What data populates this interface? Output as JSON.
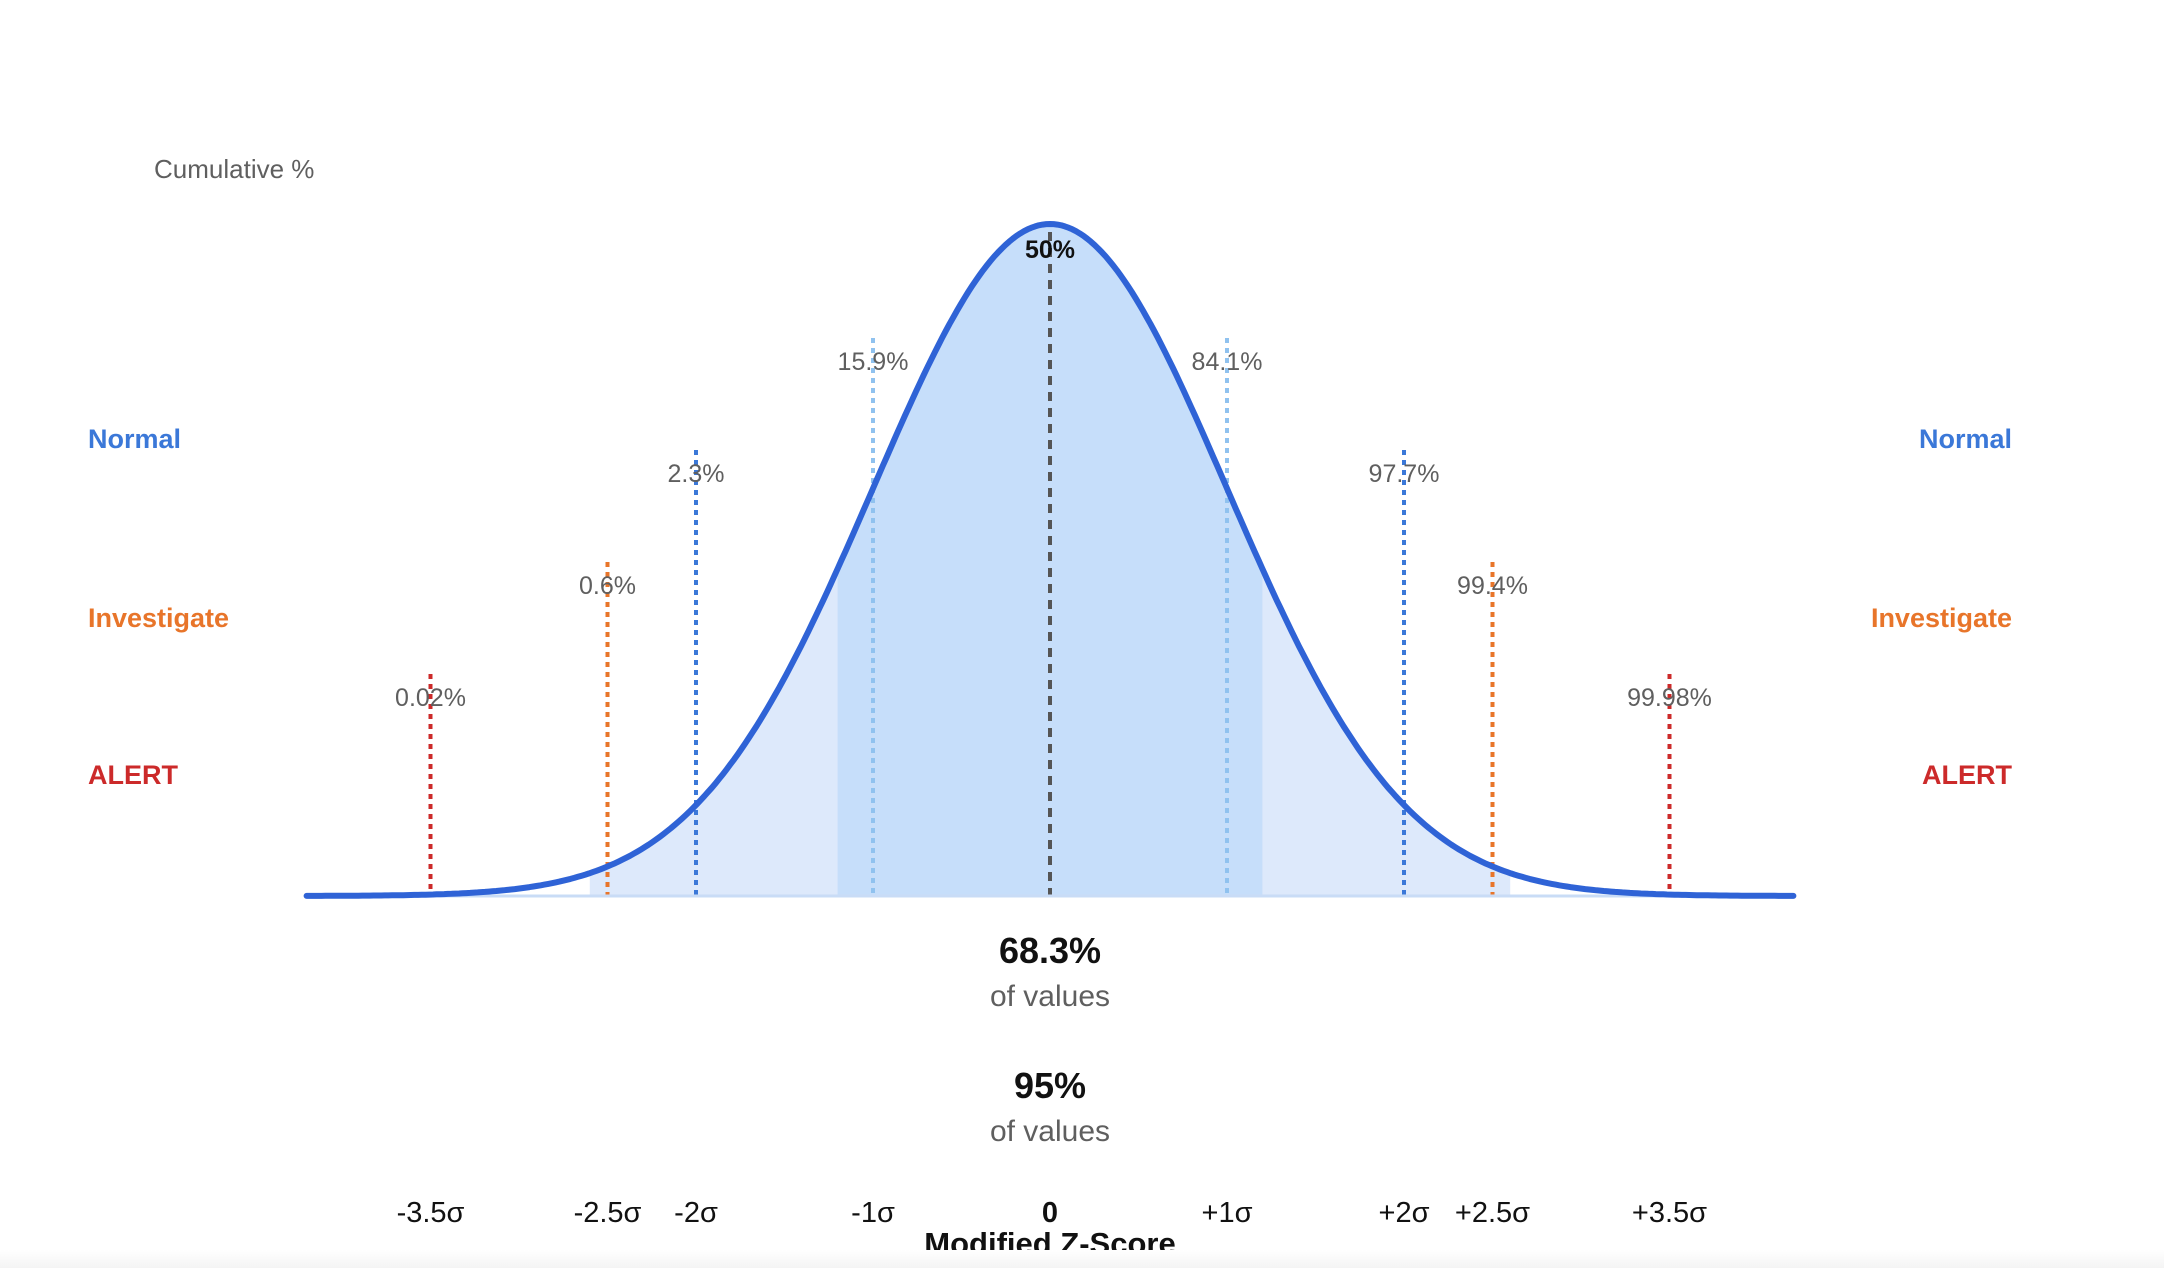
{
  "chart_data": {
    "type": "area",
    "ylabel": "Cumulative %",
    "xlabel": "Modified Z-Score",
    "xlim": [
      -4.2,
      4.2
    ],
    "curve": "standard normal density",
    "colors": {
      "curve": "#2f63d6",
      "fill_inner": "#c6defa",
      "fill_outer": "#dde9fb",
      "center_line": "#555555",
      "normal": "#3b78d8",
      "sigma1_line": "#90c2ef",
      "investigate": "#e8752a",
      "alert": "#cc2a2a",
      "text_muted": "#5f5f5f",
      "text_dark": "#111111"
    },
    "shaded_bands": [
      {
        "from": -1.2,
        "to": 1.2,
        "shade": "inner"
      },
      {
        "from": -2.6,
        "to": 2.6,
        "shade": "outer"
      }
    ],
    "markers": [
      {
        "z": -3.5,
        "tick": "-3.5σ",
        "label": "0.02%",
        "zone": "alert"
      },
      {
        "z": -2.5,
        "tick": "-2.5σ",
        "label": "0.6%",
        "zone": "investigate"
      },
      {
        "z": -2,
        "tick": "-2σ",
        "label": "2.3%",
        "zone": "normal"
      },
      {
        "z": -1,
        "tick": "-1σ",
        "label": "15.9%",
        "zone": "sigma1"
      },
      {
        "z": 0,
        "tick": "0",
        "label": "50%",
        "zone": "center"
      },
      {
        "z": 1,
        "tick": "+1σ",
        "label": "84.1%",
        "zone": "sigma1"
      },
      {
        "z": 2,
        "tick": "+2σ",
        "label": "97.7%",
        "zone": "normal"
      },
      {
        "z": 2.5,
        "tick": "+2.5σ",
        "label": "99.4%",
        "zone": "investigate"
      },
      {
        "z": 3.5,
        "tick": "+3.5σ",
        "label": "99.98%",
        "zone": "alert"
      }
    ],
    "zone_labels": {
      "normal": "Normal",
      "investigate": "Investigate",
      "alert": "ALERT"
    },
    "coverage": [
      {
        "value": "68.3%",
        "caption": "of values"
      },
      {
        "value": "95%",
        "caption": "of values"
      }
    ]
  }
}
